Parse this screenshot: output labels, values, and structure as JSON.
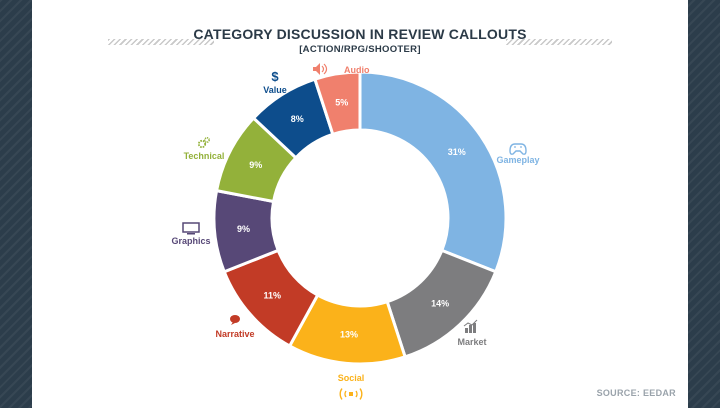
{
  "header": {
    "title": "CATEGORY DISCUSSION IN REVIEW CALLOUTS",
    "subtitle": "[ACTION/RPG/SHOOTER]"
  },
  "footer": {
    "source": "SOURCE: EEDAR"
  },
  "chart_data": {
    "type": "pie",
    "donut": true,
    "title": "CATEGORY DISCUSSION IN REVIEW CALLOUTS",
    "subtitle": "[ACTION/RPG/SHOOTER]",
    "slices": [
      {
        "label": "Gameplay",
        "value": 31,
        "display": "31%",
        "color": "#7fb4e3",
        "icon": "gamepad-icon"
      },
      {
        "label": "Market",
        "value": 14,
        "display": "14%",
        "color": "#7d7d7f",
        "icon": "bar-chart-icon"
      },
      {
        "label": "Social",
        "value": 13,
        "display": "13%",
        "color": "#fbb21a",
        "icon": "broadcast-icon"
      },
      {
        "label": "Narrative",
        "value": 11,
        "display": "11%",
        "color": "#c23b26",
        "icon": "speech-bubble-icon"
      },
      {
        "label": "Graphics",
        "value": 9,
        "display": "9%",
        "color": "#574877",
        "icon": "monitor-icon"
      },
      {
        "label": "Technical",
        "value": 9,
        "display": "9%",
        "color": "#93b13a",
        "icon": "gears-icon"
      },
      {
        "label": "Value",
        "value": 8,
        "display": "8%",
        "color": "#0d4d8c",
        "icon": "dollar-icon"
      },
      {
        "label": "Audio",
        "value": 5,
        "display": "5%",
        "color": "#f0806d",
        "icon": "speaker-icon"
      }
    ],
    "source": "SOURCE: EEDAR"
  }
}
